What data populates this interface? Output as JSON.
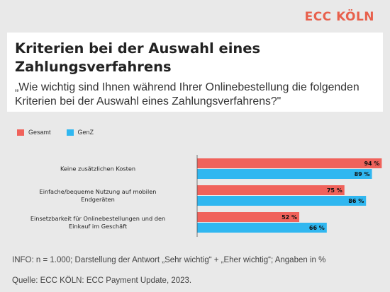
{
  "brand": {
    "name": "ECC KÖLN",
    "color": "#e8604c"
  },
  "header": {
    "title": "Kriterien bei der Auswahl eines Zahlungsverfahrens",
    "subtitle": "„Wie wichtig sind Ihnen während Ihrer Onlinebestellung die folgenden Kriterien bei der Auswahl eines Zahlungsverfahrens?\""
  },
  "legend": [
    {
      "label": "Gesamt",
      "color": "#f0625b"
    },
    {
      "label": "GenZ",
      "color": "#30b7f0"
    }
  ],
  "chart_data": {
    "type": "bar",
    "orientation": "horizontal",
    "categories": [
      [
        "Keine zusätzlichen Kosten"
      ],
      [
        "Einfache/bequeme Nutzung auf mobilen",
        "Endgeräten"
      ],
      [
        "Einsetzbarkeit für Onlinebestellungen und den",
        "Einkauf im Geschäft"
      ]
    ],
    "series": [
      {
        "name": "Gesamt",
        "color": "#f0625b",
        "values": [
          94,
          75,
          52
        ],
        "labels": [
          "94 %",
          "75 %",
          "52 %"
        ]
      },
      {
        "name": "GenZ",
        "color": "#30b7f0",
        "values": [
          89,
          86,
          66
        ],
        "labels": [
          "89 %",
          "86 %",
          "66 %"
        ]
      }
    ],
    "xlim": [
      0,
      100
    ],
    "grid": false,
    "legend_position": "top-left"
  },
  "footer": {
    "info": "INFO: n = 1.000; Darstellung der Antwort „Sehr wichtig“ + „Eher wichtig“; Angaben in %",
    "source": "Quelle: ECC KÖLN: ECC Payment Update, 2023."
  }
}
